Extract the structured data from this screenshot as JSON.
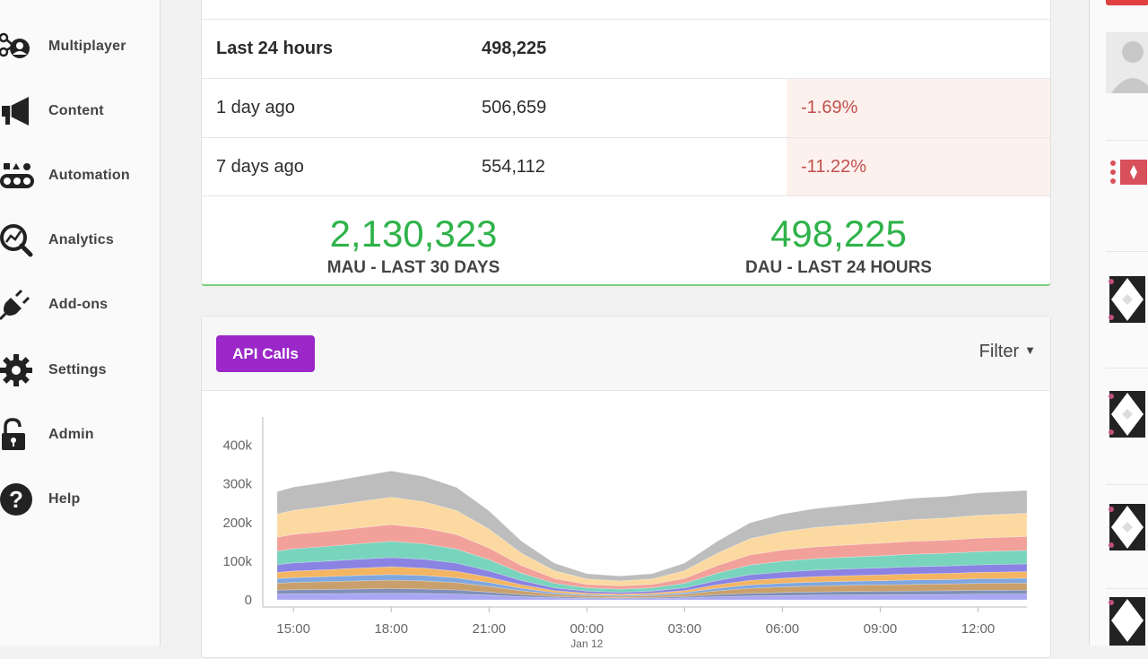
{
  "sidebar": {
    "items": [
      {
        "label": "Multiplayer",
        "icon": "multiplayer-icon"
      },
      {
        "label": "Content",
        "icon": "megaphone-icon"
      },
      {
        "label": "Automation",
        "icon": "automation-icon"
      },
      {
        "label": "Analytics",
        "icon": "analytics-icon"
      },
      {
        "label": "Add-ons",
        "icon": "plug-icon"
      },
      {
        "label": "Settings",
        "icon": "gear-icon"
      },
      {
        "label": "Admin",
        "icon": "lock-icon"
      },
      {
        "label": "Help",
        "icon": "help-icon"
      }
    ]
  },
  "stats": {
    "rows": [
      {
        "label": "Last 24 hours",
        "value": "498,225",
        "delta": ""
      },
      {
        "label": "1 day ago",
        "value": "506,659",
        "delta": "-1.69%"
      },
      {
        "label": "7 days ago",
        "value": "554,112",
        "delta": "-11.22%"
      }
    ],
    "mau": {
      "value": "2,130,323",
      "caption": "MAU - LAST 30 DAYS"
    },
    "dau": {
      "value": "498,225",
      "caption": "DAU - LAST 24 HOURS"
    }
  },
  "api_card": {
    "badge": "API Calls",
    "filter": "Filter"
  },
  "colors": {
    "positive": "#2fb34a",
    "negative": "#c0504d",
    "api_badge": "#9b27c9"
  },
  "chart_data": {
    "type": "area",
    "stacked": true,
    "x": [
      "14:30",
      "15:00",
      "16:00",
      "17:00",
      "18:00",
      "19:00",
      "20:00",
      "21:00",
      "22:00",
      "23:00",
      "00:00",
      "01:00",
      "02:00",
      "03:00",
      "04:00",
      "05:00",
      "06:00",
      "07:00",
      "08:00",
      "09:00",
      "10:00",
      "11:00",
      "12:00",
      "13:30"
    ],
    "x_tick_labels": [
      "15:00",
      "18:00",
      "21:00",
      "00:00",
      "03:00",
      "06:00",
      "09:00",
      "12:00"
    ],
    "x_sublabel": "Jan 12",
    "y_tick_labels": [
      "0",
      "100k",
      "200k",
      "300k",
      "400k"
    ],
    "ylim": [
      0,
      450000
    ],
    "grid": false,
    "series": [
      {
        "color": "#a9a6f2",
        "values": [
          15000,
          15500,
          16000,
          16500,
          17000,
          16500,
          15000,
          12000,
          8000,
          5000,
          3500,
          3000,
          3500,
          5000,
          8000,
          10000,
          11000,
          12000,
          12500,
          13000,
          13500,
          14000,
          14500,
          15000
        ]
      },
      {
        "color": "#7f8fb8",
        "values": [
          10000,
          10500,
          11000,
          11500,
          12000,
          11500,
          10500,
          8000,
          5500,
          3500,
          2500,
          2000,
          2500,
          3500,
          5500,
          7000,
          8000,
          8500,
          9000,
          9000,
          9500,
          9500,
          10000,
          10000
        ]
      },
      {
        "color": "#c9a06b",
        "values": [
          18000,
          19000,
          20000,
          21000,
          22000,
          21000,
          19000,
          15000,
          10000,
          6000,
          4500,
          4000,
          4500,
          6000,
          10000,
          13000,
          14500,
          15500,
          16000,
          16500,
          17000,
          17500,
          18000,
          18500
        ]
      },
      {
        "color": "#7fa6e0",
        "values": [
          12000,
          12500,
          13000,
          14000,
          14500,
          14000,
          12500,
          10000,
          6500,
          4000,
          3000,
          2500,
          3000,
          4000,
          6500,
          8500,
          9500,
          10000,
          10500,
          11000,
          11500,
          11500,
          12000,
          12500
        ]
      },
      {
        "color": "#f3b562",
        "values": [
          16000,
          17000,
          18000,
          19000,
          20000,
          19000,
          17000,
          13500,
          9000,
          5500,
          4000,
          3500,
          4000,
          5500,
          9000,
          12000,
          13000,
          14000,
          14500,
          15000,
          15500,
          16000,
          16500,
          17000
        ]
      },
      {
        "color": "#8a83e3",
        "values": [
          20000,
          21000,
          22000,
          23000,
          24000,
          23000,
          21000,
          16500,
          11000,
          7000,
          5000,
          4500,
          5000,
          7000,
          11000,
          14500,
          16000,
          17000,
          17500,
          18000,
          18500,
          19000,
          19500,
          20000
        ]
      },
      {
        "color": "#79d4bd",
        "values": [
          35000,
          36500,
          38000,
          40000,
          42000,
          40000,
          36500,
          29000,
          19000,
          12000,
          8500,
          8000,
          8500,
          12000,
          19000,
          25000,
          28000,
          29500,
          30500,
          31500,
          32500,
          33000,
          34000,
          35000
        ]
      },
      {
        "color": "#f2a09a",
        "values": [
          36000,
          37500,
          39000,
          41000,
          43000,
          41000,
          37500,
          30000,
          19500,
          12500,
          9000,
          8500,
          9000,
          12500,
          19500,
          26000,
          29000,
          30500,
          31500,
          32500,
          33500,
          34000,
          35000,
          36000
        ]
      },
      {
        "color": "#fbd9a0",
        "values": [
          60000,
          62000,
          65000,
          68000,
          71000,
          68000,
          62000,
          49000,
          32000,
          20000,
          14000,
          13000,
          14000,
          20000,
          32000,
          42000,
          47000,
          50000,
          52000,
          54000,
          56000,
          57000,
          59000,
          60000
        ]
      },
      {
        "color": "#bdbdbd",
        "values": [
          58000,
          60000,
          62000,
          65000,
          68000,
          65000,
          60000,
          47000,
          31000,
          19500,
          13500,
          12500,
          13500,
          19500,
          31000,
          41000,
          46000,
          49000,
          51000,
          53000,
          55000,
          56000,
          58000,
          59000
        ]
      }
    ]
  }
}
